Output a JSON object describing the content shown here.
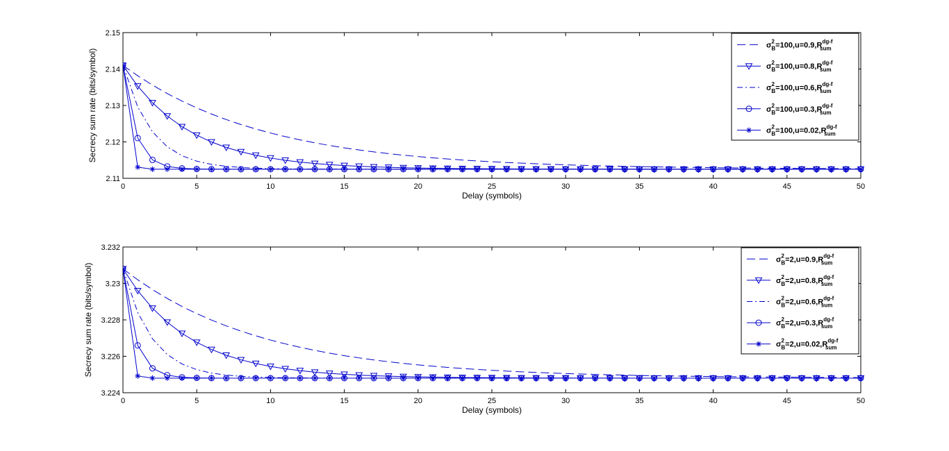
{
  "chart_data": [
    {
      "type": "line",
      "xlabel": "Delay (symbols)",
      "ylabel": "Secrecy sum rate (bits/symbol)",
      "xlim": [
        0,
        50
      ],
      "ylim": [
        2.11,
        2.15
      ],
      "xticks": [
        "0",
        "5",
        "10",
        "15",
        "20",
        "25",
        "30",
        "35",
        "40",
        "45",
        "50"
      ],
      "yticks": [
        "2.11",
        "2.12",
        "2.13",
        "2.14",
        "2.15"
      ],
      "grid": false,
      "legend_position": "top-right",
      "start_value": 2.141,
      "final_value": 2.1125,
      "x": [
        0,
        1,
        2,
        3,
        4,
        5,
        6,
        7,
        8,
        9,
        10,
        11,
        12,
        13,
        14,
        15,
        16,
        17,
        18,
        19,
        20,
        21,
        22,
        23,
        24,
        25,
        26,
        27,
        28,
        29,
        30,
        31,
        32,
        33,
        34,
        35,
        36,
        37,
        38,
        39,
        40,
        41,
        42,
        43,
        44,
        45,
        46,
        47,
        48,
        49,
        50
      ],
      "series": [
        {
          "legend": {
            "sigma": "σ",
            "sigma_sup": "2",
            "sigma_sub": "B",
            "text": "=100,u=0.9,R",
            "r_sup": "dg-f",
            "r_sub": "sum"
          },
          "u": 0.9,
          "style": "dash",
          "marker": "none"
        },
        {
          "legend": {
            "sigma": "σ",
            "sigma_sup": "2",
            "sigma_sub": "B",
            "text": "=100,u=0.8,R",
            "r_sup": "dg-f",
            "r_sub": "sum"
          },
          "u": 0.8,
          "style": "solid",
          "marker": "triangle-down"
        },
        {
          "legend": {
            "sigma": "σ",
            "sigma_sup": "2",
            "sigma_sub": "B",
            "text": "=100,u=0.6,R",
            "r_sup": "dg-f",
            "r_sub": "sum"
          },
          "u": 0.6,
          "style": "dashdot",
          "marker": "none"
        },
        {
          "legend": {
            "sigma": "σ",
            "sigma_sup": "2",
            "sigma_sub": "B",
            "text": "=100,u=0.3,R",
            "r_sup": "dg-f",
            "r_sub": "sum"
          },
          "u": 0.3,
          "style": "solid",
          "marker": "circle"
        },
        {
          "legend": {
            "sigma": "σ",
            "sigma_sup": "2",
            "sigma_sub": "B",
            "text": "=100,u=0.02,R",
            "r_sup": "dg-f",
            "r_sub": "sum"
          },
          "u": 0.02,
          "style": "solid",
          "marker": "star"
        }
      ]
    },
    {
      "type": "line",
      "xlabel": "Delay (symbols)",
      "ylabel": "Secrecy sum rate (bits/symbol)",
      "xlim": [
        0,
        50
      ],
      "ylim": [
        3.224,
        3.232
      ],
      "xticks": [
        "0",
        "5",
        "10",
        "15",
        "20",
        "25",
        "30",
        "35",
        "40",
        "45",
        "50"
      ],
      "yticks": [
        "3.224",
        "3.226",
        "3.228",
        "3.23",
        "3.232"
      ],
      "grid": false,
      "legend_position": "top-right",
      "start_value": 3.2308,
      "final_value": 3.2248,
      "x": [
        0,
        1,
        2,
        3,
        4,
        5,
        6,
        7,
        8,
        9,
        10,
        11,
        12,
        13,
        14,
        15,
        16,
        17,
        18,
        19,
        20,
        21,
        22,
        23,
        24,
        25,
        26,
        27,
        28,
        29,
        30,
        31,
        32,
        33,
        34,
        35,
        36,
        37,
        38,
        39,
        40,
        41,
        42,
        43,
        44,
        45,
        46,
        47,
        48,
        49,
        50
      ],
      "series": [
        {
          "legend": {
            "sigma": "σ",
            "sigma_sup": "2",
            "sigma_sub": "B",
            "text": "=2,u=0.9,R",
            "r_sup": "dg-f",
            "r_sub": "sum"
          },
          "u": 0.9,
          "style": "dash",
          "marker": "none"
        },
        {
          "legend": {
            "sigma": "σ",
            "sigma_sup": "2",
            "sigma_sub": "B",
            "text": "=2,u=0.8,R",
            "r_sup": "dg-f",
            "r_sub": "sum"
          },
          "u": 0.8,
          "style": "solid",
          "marker": "triangle-down"
        },
        {
          "legend": {
            "sigma": "σ",
            "sigma_sup": "2",
            "sigma_sub": "B",
            "text": "=2,u=0.6,R",
            "r_sup": "dg-f",
            "r_sub": "sum"
          },
          "u": 0.6,
          "style": "dashdot",
          "marker": "none"
        },
        {
          "legend": {
            "sigma": "σ",
            "sigma_sup": "2",
            "sigma_sub": "B",
            "text": "=2,u=0.3,R",
            "r_sup": "dg-f",
            "r_sub": "sum"
          },
          "u": 0.3,
          "style": "solid",
          "marker": "circle"
        },
        {
          "legend": {
            "sigma": "σ",
            "sigma_sup": "2",
            "sigma_sub": "B",
            "text": "=2,u=0.02,R",
            "r_sup": "dg-f",
            "r_sub": "sum"
          },
          "u": 0.02,
          "style": "solid",
          "marker": "star"
        }
      ]
    }
  ],
  "colors": {
    "series": "#0000cc",
    "axes": "#000000",
    "background": "#ffffff"
  }
}
